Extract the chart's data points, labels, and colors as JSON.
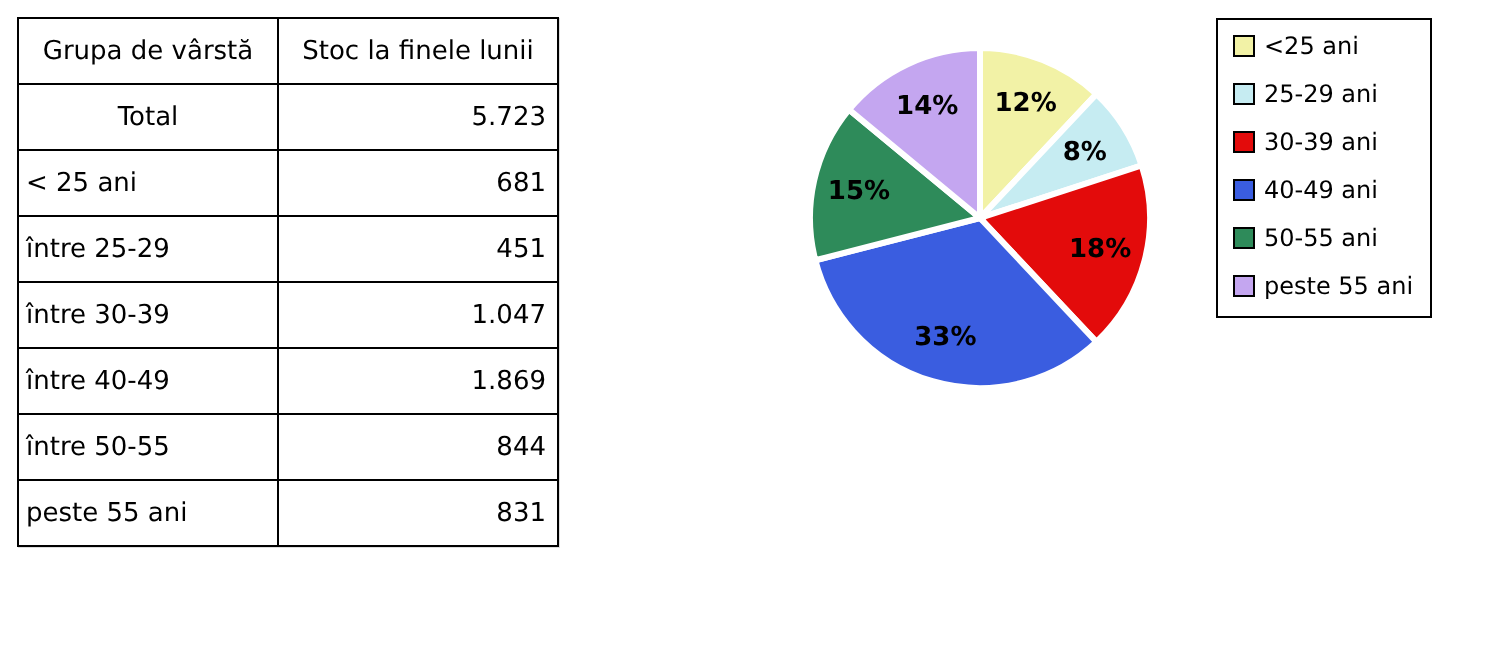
{
  "chart_data": {
    "type": "pie",
    "categories": [
      "<25 ani",
      "25-29 ani",
      "30-39 ani",
      "40-49 ani",
      "50-55 ani",
      "peste 55 ani"
    ],
    "values": [
      12,
      8,
      18,
      33,
      15,
      14
    ],
    "colors": [
      "#f2f2a6",
      "#c6ecf2",
      "#e30b0b",
      "#3a5de0",
      "#2e8b5a",
      "#c4a6f0"
    ],
    "value_labels": [
      "12%",
      "8%",
      "18%",
      "33%",
      "15%",
      "14%"
    ],
    "legend": "right",
    "annotations": [
      "Grupa de vârstă",
      "Stoc la finele lunii",
      "Total",
      "5.723",
      "< 25 ani",
      "681",
      "între 25-29",
      "451",
      "între 30-39",
      "1.047",
      "între 40-49",
      "1.869",
      "între 50-55",
      "844",
      "peste 55 ani",
      "831"
    ]
  }
}
